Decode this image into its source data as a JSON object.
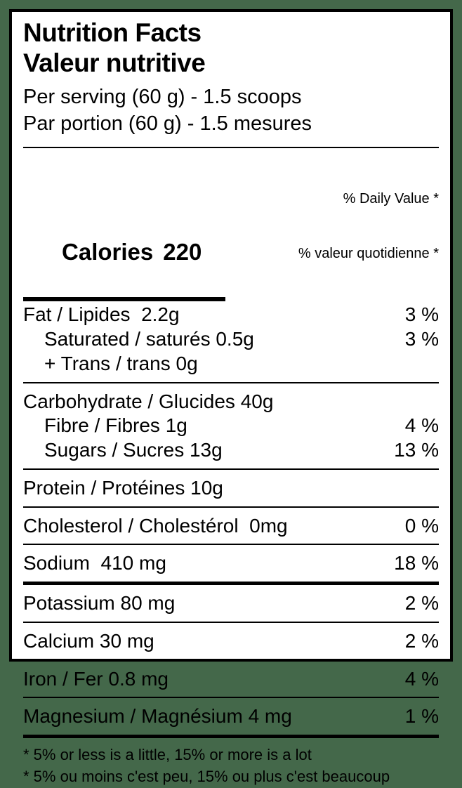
{
  "label": {
    "title_en": "Nutrition Facts",
    "title_fr": "Valeur nutritive",
    "serving_en": "Per serving (60 g) - 1.5 scoops",
    "serving_fr": "Par portion (60 g) - 1.5 mesures",
    "calories_label": "Calories",
    "calories_value": "220",
    "daily_value_header_en": "% Daily Value *",
    "daily_value_header_fr": "% valeur quotidienne *",
    "nutrients": [
      {
        "label": "Fat / Lipides  2.2g",
        "daily_value": "3 %"
      },
      {
        "label": "Saturated / saturés 0.5g",
        "daily_value": "3 %"
      },
      {
        "label": "+ Trans / trans 0g",
        "daily_value": ""
      },
      {
        "label": "Carbohydrate / Glucides 40g",
        "daily_value": ""
      },
      {
        "label": "Fibre / Fibres 1g",
        "daily_value": "4 %"
      },
      {
        "label": "Sugars / Sucres 13g",
        "daily_value": "13 %"
      },
      {
        "label": "Protein / Protéines 10g",
        "daily_value": ""
      },
      {
        "label": "Cholesterol / Cholestérol  0mg",
        "daily_value": "0 %"
      },
      {
        "label": "Sodium  410 mg",
        "daily_value": "18 %"
      },
      {
        "label": "Potassium 80 mg",
        "daily_value": "2 %"
      },
      {
        "label": "Calcium 30 mg",
        "daily_value": "2 %"
      },
      {
        "label": "Iron / Fer 0.8 mg",
        "daily_value": "4 %"
      },
      {
        "label": "Magnesium / Magnésium 4 mg",
        "daily_value": "1 %"
      }
    ],
    "footnote_en": "* 5% or less is a little, 15% or more is a lot",
    "footnote_fr": "* 5% ou moins c'est peu, 15% ou plus c'est beaucoup"
  },
  "colors": {
    "background_green": "#44684A",
    "label_background": "#ffffff",
    "text": "#000000"
  }
}
